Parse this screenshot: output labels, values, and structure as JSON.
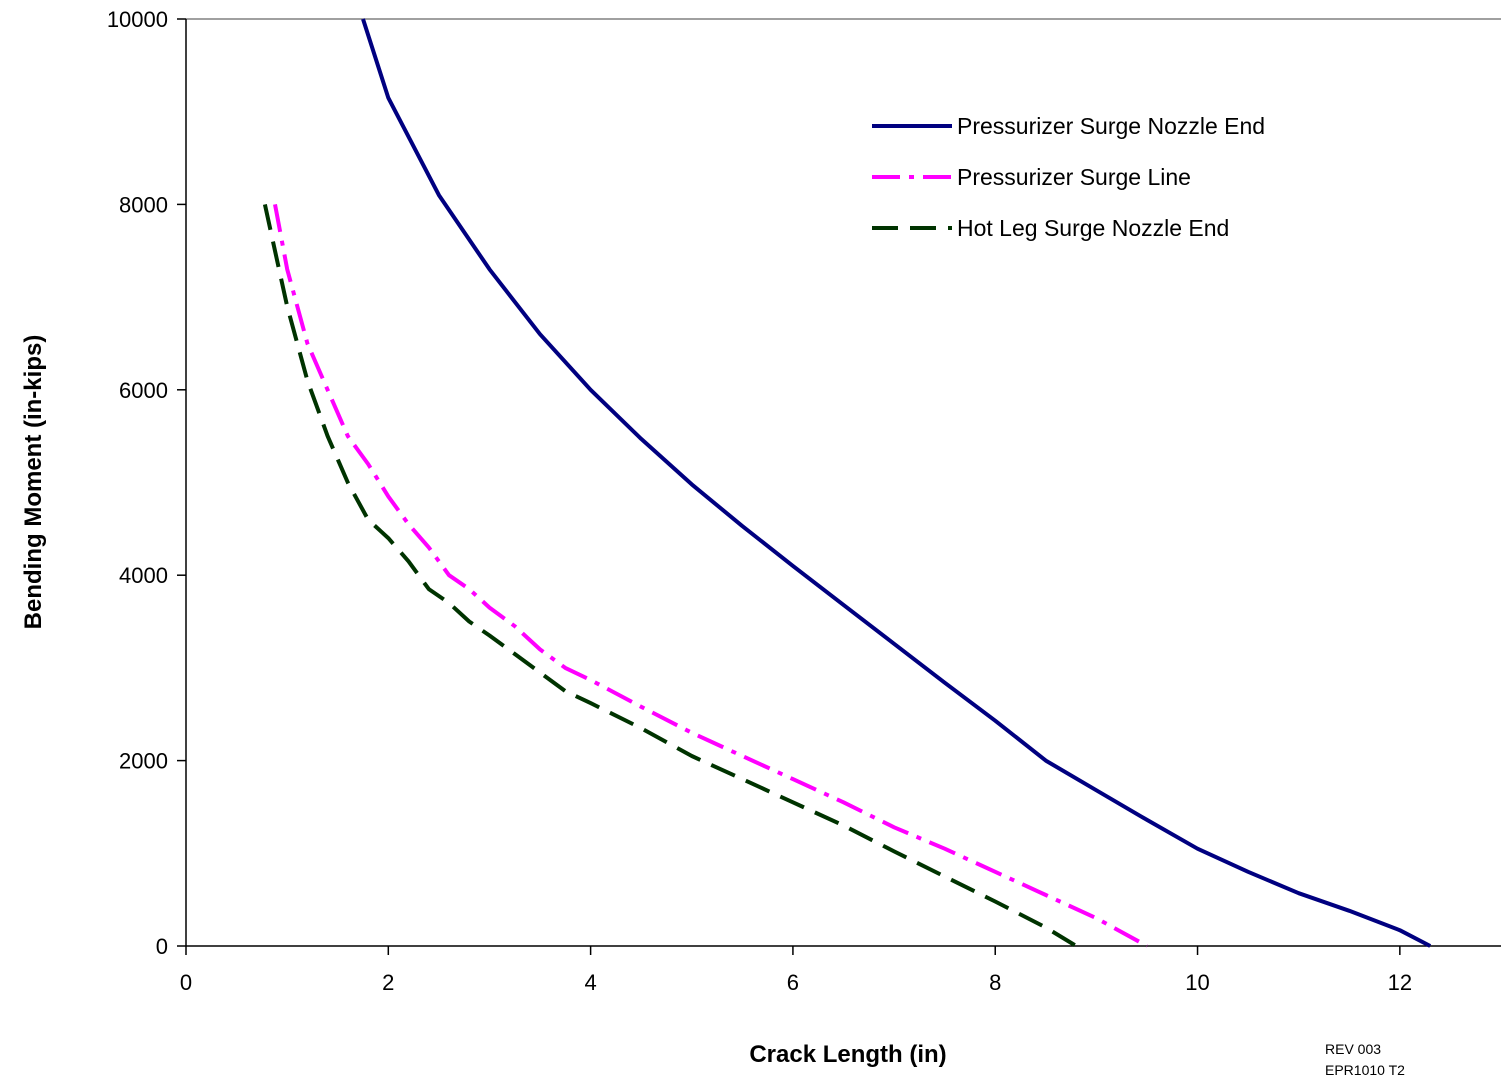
{
  "chart_data": {
    "type": "line",
    "title": "",
    "xlabel": "Crack Length (in)",
    "ylabel": "Bending Moment (in-kips)",
    "xlim": [
      0,
      13
    ],
    "ylim": [
      0,
      10000
    ],
    "xticks": [
      0,
      2,
      4,
      6,
      8,
      10,
      12
    ],
    "yticks": [
      0,
      2000,
      4000,
      6000,
      8000,
      10000
    ],
    "grid": false,
    "legend_position": "top-right",
    "series": [
      {
        "name": "Pressurizer Surge Nozzle End",
        "color": "#000080",
        "style": "solid",
        "x": [
          1.75,
          2.0,
          2.5,
          3.0,
          3.5,
          4.0,
          4.5,
          5.0,
          5.5,
          6.0,
          6.5,
          7.0,
          7.5,
          8.0,
          8.5,
          9.0,
          9.5,
          10.0,
          10.5,
          11.0,
          11.5,
          12.0,
          12.3
        ],
        "y": [
          10000,
          9150,
          8100,
          7300,
          6600,
          6000,
          5470,
          4980,
          4530,
          4100,
          3680,
          3260,
          2840,
          2430,
          2000,
          1680,
          1360,
          1050,
          800,
          570,
          380,
          170,
          0
        ]
      },
      {
        "name": "Pressurizer Surge Line",
        "color": "#FF00FF",
        "style": "dashdot",
        "x": [
          0.88,
          1.0,
          1.2,
          1.4,
          1.6,
          1.8,
          2.0,
          2.2,
          2.4,
          2.6,
          2.8,
          3.0,
          3.25,
          3.5,
          3.75,
          4.0,
          4.5,
          5.0,
          5.5,
          6.0,
          6.5,
          7.0,
          7.5,
          8.0,
          8.5,
          9.0,
          9.5
        ],
        "y": [
          8000,
          7300,
          6500,
          6000,
          5500,
          5200,
          4850,
          4550,
          4300,
          4000,
          3850,
          3650,
          3450,
          3200,
          3000,
          2870,
          2580,
          2300,
          2050,
          1800,
          1550,
          1280,
          1050,
          800,
          550,
          300,
          0
        ]
      },
      {
        "name": "Hot Leg Surge Nozzle End",
        "color": "#003300",
        "style": "dashed",
        "x": [
          0.78,
          0.9,
          1.0,
          1.2,
          1.4,
          1.6,
          1.8,
          2.0,
          2.2,
          2.4,
          2.6,
          2.8,
          3.0,
          3.25,
          3.5,
          3.75,
          4.0,
          4.5,
          5.0,
          5.5,
          6.0,
          6.5,
          7.0,
          7.5,
          8.0,
          8.5,
          8.8
        ],
        "y": [
          8000,
          7400,
          6900,
          6100,
          5500,
          5000,
          4600,
          4400,
          4150,
          3850,
          3700,
          3500,
          3350,
          3150,
          2950,
          2750,
          2620,
          2350,
          2050,
          1800,
          1550,
          1300,
          1020,
          750,
          480,
          200,
          0
        ]
      }
    ]
  },
  "rev": {
    "line1": "REV 003",
    "line2": "EPR1010 T2"
  }
}
